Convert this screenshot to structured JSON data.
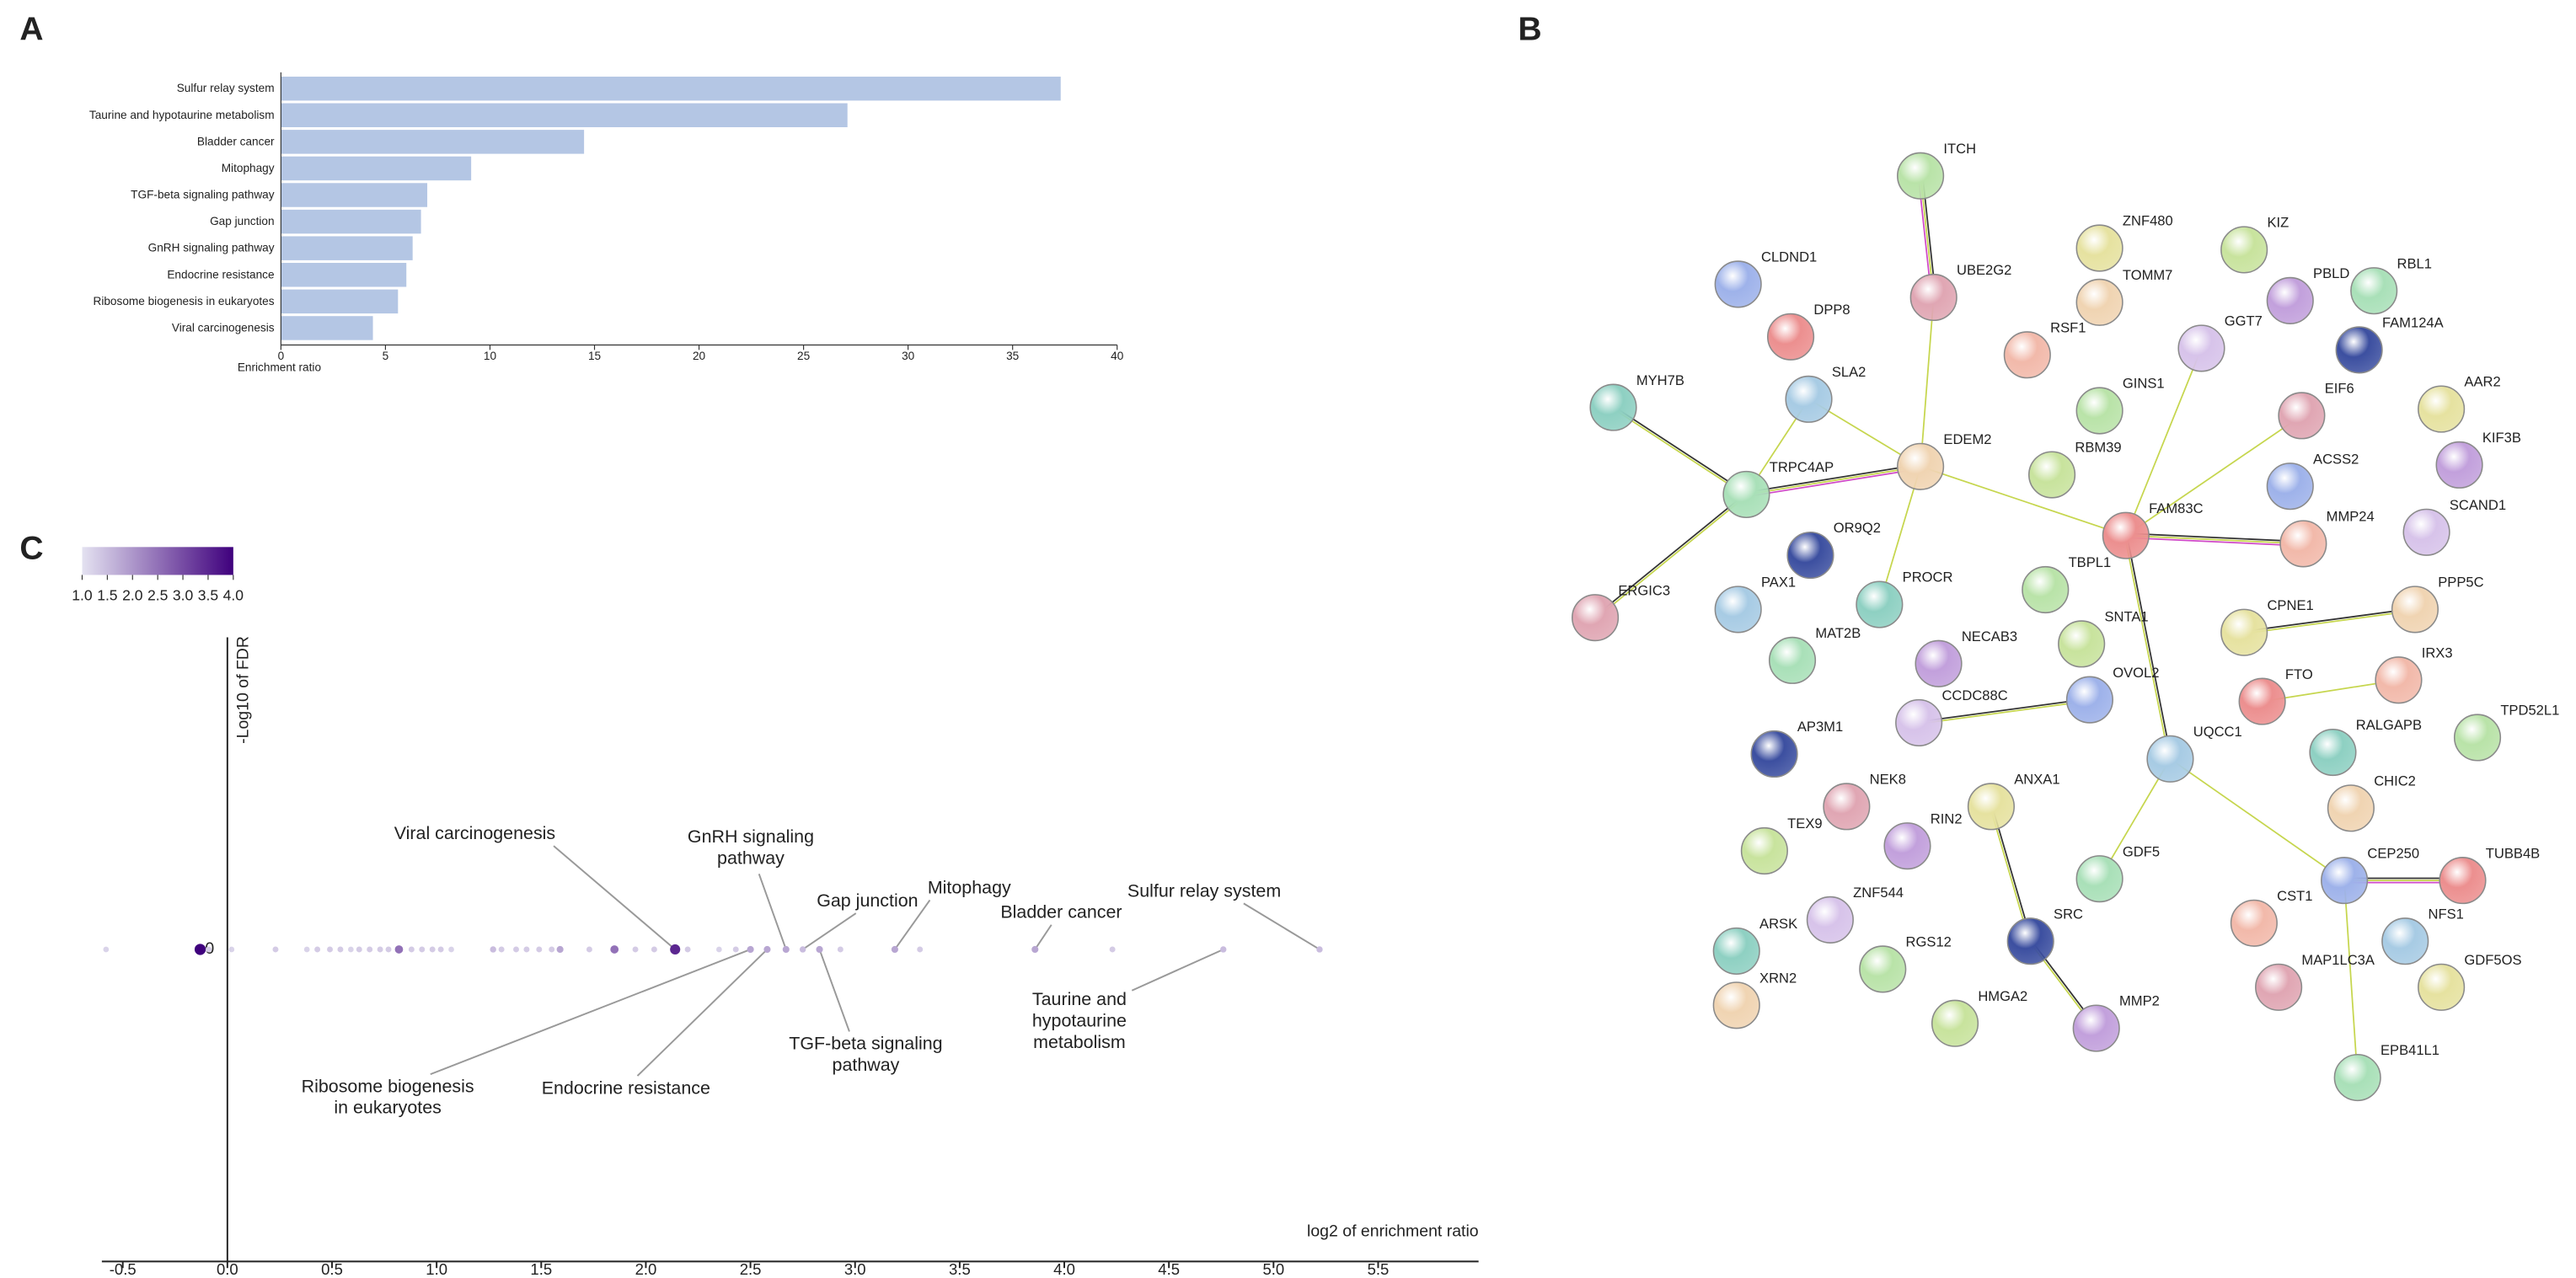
{
  "chart_data": [
    {
      "type": "bar",
      "panel": "A",
      "orientation": "horizontal",
      "categories": [
        "Sulfur relay system",
        "Taurine and hypotaurine metabolism",
        "Bladder cancer",
        "Mitophagy",
        "TGF-beta signaling pathway",
        "Gap junction",
        "GnRH signaling pathway",
        "Endocrine resistance",
        "Ribosome biogenesis in eukaryotes",
        "Viral carcinogenesis"
      ],
      "values": [
        37.3,
        27.1,
        14.5,
        9.1,
        7.0,
        6.7,
        6.3,
        6.0,
        5.6,
        4.4
      ],
      "color": "#b4c6e4",
      "xlabel": "Enrichment ratio",
      "xlim": [
        0,
        40
      ],
      "xticks": [
        0,
        5,
        10,
        15,
        20,
        25,
        30,
        35,
        40
      ]
    },
    {
      "type": "network",
      "panel": "B",
      "nodes": [
        "ITCH",
        "UBE2G2",
        "ZNF480",
        "TOMM7",
        "KIZ",
        "PBLD",
        "RBL1",
        "CLDND1",
        "DPP8",
        "RSF1",
        "GGT7",
        "FAM124A",
        "SLA2",
        "MYH7B",
        "GINS1",
        "EIF6",
        "AAR2",
        "EDEM2",
        "RBM39",
        "KIF3B",
        "TRPC4AP",
        "ACSS2",
        "FAM83C",
        "MMP24",
        "SCAND1",
        "OR9Q2",
        "PAX1",
        "PROCR",
        "TBPL1",
        "ERGIC3",
        "CPNE1",
        "PPP5C",
        "SNTA1",
        "NECAB3",
        "MAT2B",
        "OVOL2",
        "FTO",
        "IRX3",
        "CCDC88C",
        "AP3M1",
        "UQCC1",
        "RALGAPB",
        "TPD52L1",
        "NEK8",
        "ANXA1",
        "CHIC2",
        "TEX9",
        "RIN2",
        "GDF5",
        "CEP250",
        "TUBB4B",
        "CST1",
        "ZNF544",
        "SRC",
        "NFS1",
        "ARSK",
        "RGS12",
        "MAP1LC3A",
        "GDF5OS",
        "XRN2",
        "HMGA2",
        "MMP2",
        "EPB41L1"
      ]
    },
    {
      "type": "scatter",
      "panel": "C",
      "xlabel": "log2 of enrichment ratio",
      "ylabel": "-Log10 of FDR",
      "x": [
        -0.58,
        -0.13,
        -0.09,
        0.02,
        0.23,
        0.38,
        0.43,
        0.49,
        0.54,
        0.59,
        0.63,
        0.68,
        0.73,
        0.77,
        0.82,
        0.88,
        0.93,
        0.98,
        1.02,
        1.07,
        1.27,
        1.31,
        1.38,
        1.43,
        1.49,
        1.55,
        1.59,
        1.73,
        1.85,
        1.95,
        2.04,
        2.14,
        2.2,
        2.35,
        2.43,
        2.5,
        2.58,
        2.67,
        2.75,
        2.83,
        2.93,
        3.19,
        3.31,
        3.86,
        4.23,
        4.76,
        5.22
      ],
      "y": [
        0,
        0,
        0,
        0,
        0,
        0,
        0,
        0,
        0,
        0,
        0,
        0,
        0,
        0,
        0,
        0,
        0,
        0,
        0,
        0,
        0,
        0,
        0,
        0,
        0,
        0,
        0,
        0,
        0,
        0,
        0,
        0,
        0,
        0,
        0,
        0,
        0,
        0,
        0,
        0,
        0,
        0,
        0,
        0,
        0,
        0,
        0
      ],
      "z": [
        1.2,
        4.0,
        1.3,
        1.2,
        1.3,
        1.2,
        1.3,
        1.3,
        1.3,
        1.2,
        1.3,
        1.3,
        1.3,
        1.3,
        2.5,
        1.3,
        1.3,
        1.3,
        1.3,
        1.2,
        1.5,
        1.3,
        1.3,
        1.3,
        1.3,
        1.3,
        1.8,
        1.3,
        2.5,
        1.3,
        1.3,
        3.5,
        1.3,
        1.2,
        1.3,
        1.8,
        1.8,
        1.8,
        1.5,
        1.8,
        1.3,
        1.8,
        1.3,
        1.8,
        1.3,
        1.5,
        1.5
      ],
      "xlim": [
        -0.6,
        5.98
      ],
      "ylim": [
        -1,
        1
      ],
      "xticks": [
        -0.5,
        {
          "value": 0,
          "label": "0.0"
        },
        0.5,
        {
          "value": 1,
          "label": "1.0"
        },
        1.5,
        {
          "value": 2,
          "label": "2.0"
        },
        2.5,
        {
          "value": 3,
          "label": "3.0"
        },
        3.5,
        {
          "value": 4,
          "label": "4.0"
        },
        4.5,
        {
          "value": 5,
          "label": "5.0"
        },
        5.5
      ],
      "yticks": [
        0
      ],
      "zlim": [
        1,
        4
      ],
      "zcolors": [
        "#e4e2f1",
        "#3f007d"
      ],
      "zticks": [
        {
          "value": 1,
          "label": "1.0"
        },
        1.5,
        {
          "value": 2,
          "label": "2.0"
        },
        2.5,
        {
          "value": 3,
          "label": "3.0"
        },
        3.5,
        {
          "value": 4,
          "label": "4.0"
        }
      ],
      "annotations": [
        {
          "point": 31,
          "lines": [
            "Viral carcinogenesis"
          ]
        },
        {
          "point": 37,
          "lines": [
            "GnRH signaling",
            "pathway"
          ]
        },
        {
          "point": 38,
          "lines": [
            "Gap junction"
          ]
        },
        {
          "point": 41,
          "lines": [
            "Mitophagy"
          ]
        },
        {
          "point": 43,
          "lines": [
            "Bladder cancer"
          ]
        },
        {
          "point": 46,
          "lines": [
            "Sulfur relay system"
          ]
        },
        {
          "point": 45,
          "lines": [
            "Taurine and",
            "hypotaurine",
            "metabolism"
          ]
        },
        {
          "point": 39,
          "lines": [
            "TGF-beta signaling",
            "pathway"
          ]
        },
        {
          "point": 36,
          "lines": [
            "Endocrine resistance"
          ]
        },
        {
          "point": 35,
          "lines": [
            "Ribosome biogenesis",
            "in eukaryotes"
          ]
        }
      ]
    }
  ]
}
